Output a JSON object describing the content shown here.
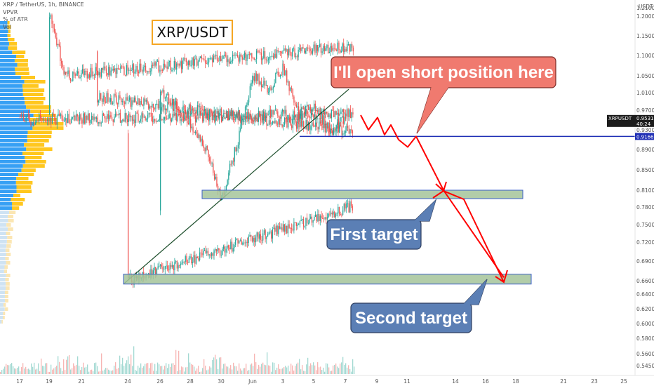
{
  "header": {
    "symbol_line": "XRP / TetherUS, 1h, BINANCE",
    "indicators": [
      "VPVR",
      "% of ATR",
      "Vol"
    ],
    "title": "XRP/USDT"
  },
  "price_axis": {
    "currency": "USDT",
    "labels": [
      "1.2100",
      "1.2000",
      "1.1500",
      "1.1000",
      "1.0500",
      "1.0100",
      "0.9700",
      "0.9300",
      "0.8900",
      "0.8500",
      "0.8100",
      "0.7800",
      "0.7500",
      "0.7200",
      "0.6900",
      "0.6600",
      "0.6400",
      "0.6200",
      "0.6000",
      "0.5800",
      "0.5600",
      "0.5450"
    ]
  },
  "time_axis": {
    "labels": [
      "17",
      "19",
      "21",
      "24",
      "26",
      "28",
      "30",
      "Jun",
      "3",
      "5",
      "7",
      "9",
      "11",
      "14",
      "16",
      "18",
      "21",
      "23",
      "25"
    ]
  },
  "tags": {
    "symbol": "XRPUSDT",
    "last_price": "0.9531",
    "countdown": "40:24",
    "level": "0.9166"
  },
  "annotations": {
    "short_label": "I'll open short position here",
    "first_target": "First target",
    "second_target": "Second target"
  },
  "colors": {
    "up_candle": "#26a69a",
    "down_candle": "#ef5350",
    "vpvr_up": "#2196f3",
    "vpvr_down": "#ffc107",
    "zone_fill": "#a5c49a",
    "zone_border": "#3a5fc8",
    "level_line": "#1f2fb5",
    "projection": "#ff0000",
    "callout_red": "#f07a6f",
    "callout_blue": "#5b7fb5"
  },
  "chart_data": {
    "type": "candlestick",
    "title": "XRP/USDT",
    "xlabel": "",
    "ylabel": "USDT",
    "ylim": [
      0.54,
      1.22
    ],
    "x_ticks": [
      "17",
      "19",
      "21",
      "24",
      "26",
      "28",
      "30",
      "Jun",
      "3",
      "5",
      "7",
      "9",
      "11",
      "14",
      "16",
      "18",
      "21",
      "23",
      "25"
    ],
    "price_path": [
      {
        "t": "17",
        "p": 0.95
      },
      {
        "t": "18",
        "p": 0.97
      },
      {
        "t": "19",
        "p": 1.2
      },
      {
        "t": "20",
        "p": 1.05
      },
      {
        "t": "21",
        "p": 1.18
      },
      {
        "t": "22",
        "p": 1.0
      },
      {
        "t": "23",
        "p": 0.86
      },
      {
        "t": "24",
        "p": 0.66
      },
      {
        "t": "25",
        "p": 0.96
      },
      {
        "t": "26",
        "p": 1.01
      },
      {
        "t": "27",
        "p": 0.98
      },
      {
        "t": "28",
        "p": 0.94
      },
      {
        "t": "29",
        "p": 0.89
      },
      {
        "t": "30",
        "p": 0.795
      },
      {
        "t": "31",
        "p": 0.9
      },
      {
        "t": "Jun",
        "p": 1.05
      },
      {
        "t": "2",
        "p": 1.02
      },
      {
        "t": "3",
        "p": 1.07
      },
      {
        "t": "4",
        "p": 0.96
      },
      {
        "t": "5",
        "p": 0.98
      },
      {
        "t": "6",
        "p": 0.93
      },
      {
        "t": "7",
        "p": 0.9531
      }
    ],
    "key_level": 0.9166,
    "target_zones": [
      {
        "name": "First target",
        "from": 0.795,
        "to": 0.81
      },
      {
        "name": "Second target",
        "from": 0.655,
        "to": 0.67
      }
    ],
    "trendline": [
      {
        "t": "24",
        "p": 0.66
      },
      {
        "t": "7",
        "p": 1.02
      }
    ],
    "projection_path": [
      0.96,
      0.93,
      0.955,
      0.92,
      0.94,
      0.91,
      0.895,
      0.9166,
      0.81,
      0.665
    ],
    "grid": false,
    "legend": "top-left"
  }
}
